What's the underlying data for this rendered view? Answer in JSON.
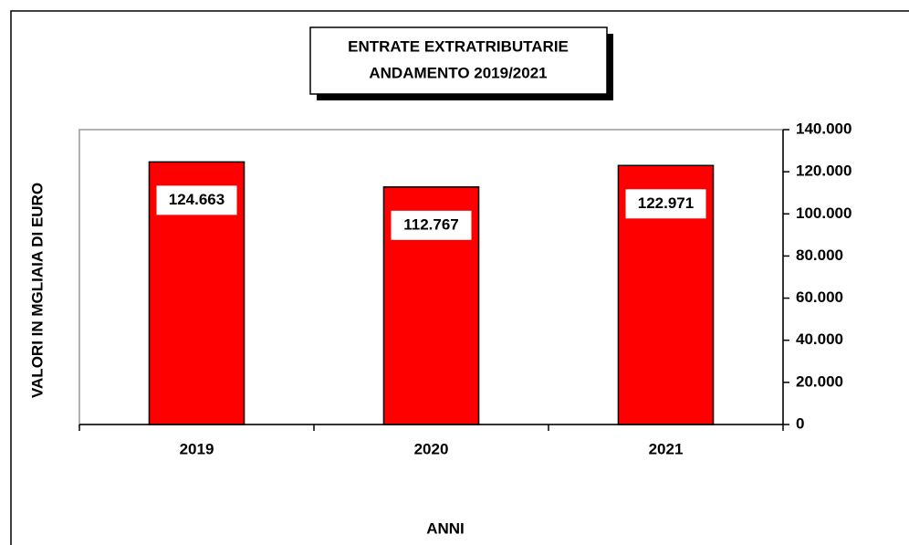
{
  "chart_data": {
    "type": "bar",
    "title": [
      "ENTRATE EXTRATRIBUTARIE",
      "ANDAMENTO 2019/2021"
    ],
    "y_label": "VALORI IN MGLIAIA DI EURO",
    "x_label": "ANNI",
    "categories": [
      "2019",
      "2020",
      "2021"
    ],
    "values": [
      124663,
      112767,
      122971
    ],
    "value_labels": [
      "124.663",
      "112.767",
      "122.971"
    ],
    "color": "#ff0000",
    "ylim": [
      0,
      140000
    ],
    "yticks": [
      0,
      {
        "value": 20000,
        "label": "20.000"
      },
      {
        "value": 40000,
        "label": "40.000"
      },
      {
        "value": 60000,
        "label": "60.000"
      },
      {
        "value": 80000,
        "label": "80.000"
      },
      {
        "value": 100000,
        "label": "100.000"
      },
      {
        "value": 120000,
        "label": "120.000"
      },
      {
        "value": 140000,
        "label": "140.000"
      }
    ],
    "y_axis_side": "right"
  }
}
